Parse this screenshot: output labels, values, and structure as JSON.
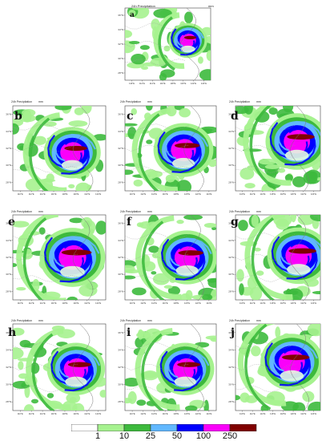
{
  "panel_title": "24h Precipitation",
  "unit": "mm",
  "lat_ticks": [
    "36°N",
    "34°N",
    "32°N",
    "30°N",
    "28°N"
  ],
  "lon_ticks": [
    "110°E",
    "112°E",
    "114°E",
    "116°E",
    "118°E",
    "120°E",
    "122°E",
    "124°E"
  ],
  "panels": [
    {
      "id": "a",
      "letter": "a"
    },
    {
      "id": "b",
      "letter": "b"
    },
    {
      "id": "c",
      "letter": "c"
    },
    {
      "id": "d",
      "letter": "d"
    },
    {
      "id": "e",
      "letter": "e"
    },
    {
      "id": "f",
      "letter": "f"
    },
    {
      "id": "g",
      "letter": "g"
    },
    {
      "id": "h",
      "letter": "h"
    },
    {
      "id": "i",
      "letter": "i"
    },
    {
      "id": "j",
      "letter": "j"
    }
  ],
  "colorbar": {
    "labels": [
      "1",
      "10",
      "25",
      "50",
      "100",
      "250"
    ],
    "colors": [
      "#ffffff",
      "#a6f28f",
      "#3dba3d",
      "#61b8ff",
      "#0000ff",
      "#fa00fa",
      "#800000"
    ]
  }
}
